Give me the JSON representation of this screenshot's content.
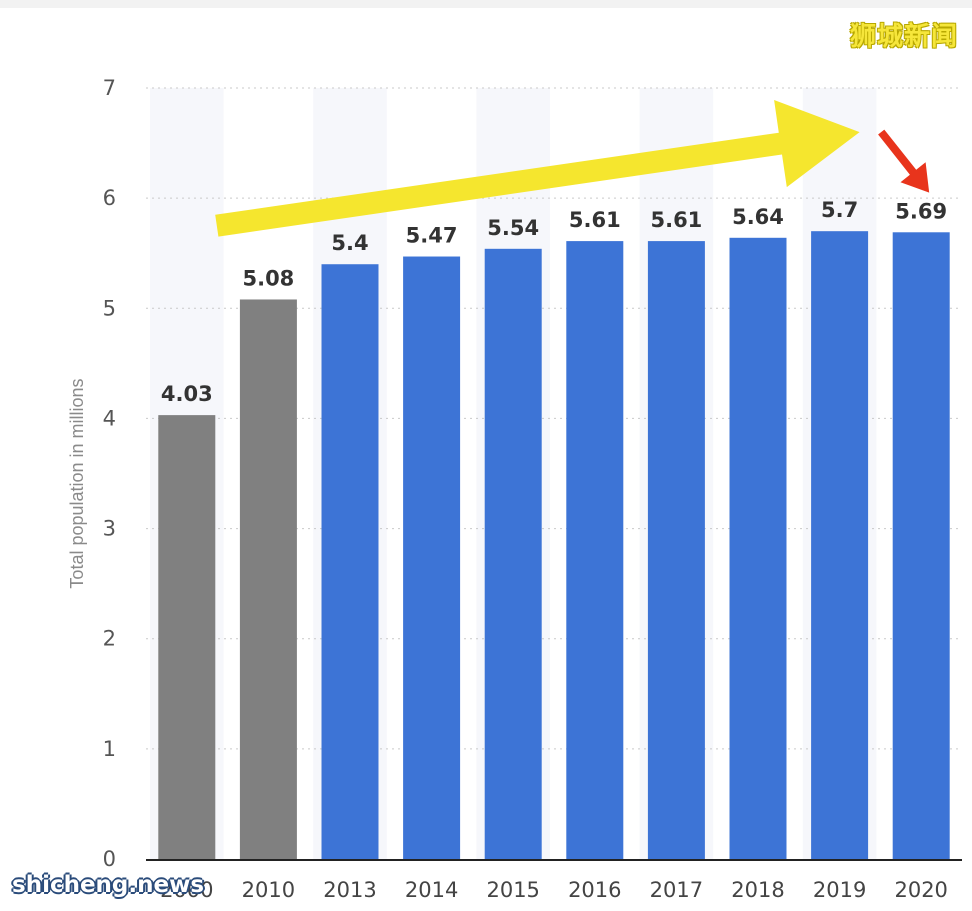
{
  "chart_data": {
    "type": "bar",
    "title": "",
    "xlabel": "",
    "ylabel": "Total population in millions",
    "categories": [
      "2000",
      "2010",
      "2013",
      "2014",
      "2015",
      "2016",
      "2017",
      "2018",
      "2019",
      "2020"
    ],
    "values": [
      4.03,
      5.08,
      5.4,
      5.47,
      5.54,
      5.61,
      5.61,
      5.64,
      5.7,
      5.69
    ],
    "data_labels": [
      "4.03",
      "5.08",
      "5.4",
      "5.47",
      "5.54",
      "5.61",
      "5.61",
      "5.64",
      "5.7",
      "5.69"
    ],
    "bar_colors": [
      "#808080",
      "#808080",
      "#3d74d6",
      "#3d74d6",
      "#3d74d6",
      "#3d74d6",
      "#3d74d6",
      "#3d74d6",
      "#3d74d6",
      "#3d74d6"
    ],
    "ylim": [
      0,
      7
    ],
    "yticks": [
      0,
      1,
      2,
      3,
      4,
      5,
      6,
      7
    ],
    "grid": true,
    "annotations": [
      {
        "type": "arrow",
        "color": "#f5e62e",
        "from": {
          "x": "2000",
          "y": 5.75
        },
        "to": {
          "x": "2019",
          "y": 6.6
        }
      },
      {
        "type": "arrow",
        "color": "#e8341c",
        "from": {
          "x": "2020",
          "y": 6.6
        },
        "to": {
          "x": "2020",
          "y": 6.05
        }
      }
    ]
  },
  "watermarks": {
    "top_right": "狮城新闻",
    "bottom_left": "shicheng.news"
  }
}
